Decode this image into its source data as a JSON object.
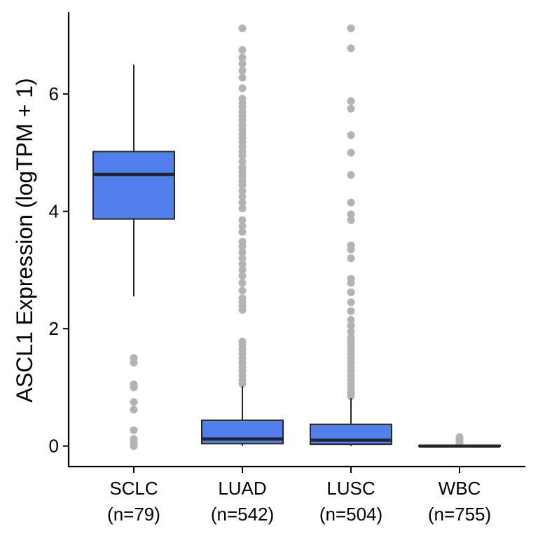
{
  "chart_data": {
    "type": "box",
    "title": "",
    "ylabel": "ASCL1 Expression (logTPM + 1)",
    "xlabel": "",
    "ylim": [
      -0.35,
      7.4
    ],
    "yticks": [
      0,
      2,
      4,
      6
    ],
    "ytick_labels": [
      "0",
      "2",
      "4",
      "6"
    ],
    "grid": false,
    "legend": "none",
    "colors": {
      "box_fill": "#5080EC",
      "box_stroke": "#262626",
      "outlier": "#B3B3B3",
      "axis": "#000000"
    },
    "groups": [
      {
        "label": "SCLC",
        "n_label": "(n=79)",
        "whisker_low": 2.55,
        "q1": 3.87,
        "median": 4.63,
        "q3": 5.02,
        "whisker_high": 6.5,
        "outliers": [
          1.5,
          1.42,
          1.05,
          1.0,
          0.75,
          0.62,
          0.27,
          0.12,
          0.07,
          0.03,
          0.0
        ]
      },
      {
        "label": "LUAD",
        "n_label": "(n=542)",
        "whisker_low": 0.0,
        "q1": 0.04,
        "median": 0.12,
        "q3": 0.44,
        "whisker_high": 1.02,
        "outliers": [
          7.12,
          6.75,
          6.62,
          6.52,
          6.4,
          6.28,
          6.1,
          5.92,
          5.85,
          5.78,
          5.7,
          5.62,
          5.55,
          5.47,
          5.4,
          5.32,
          5.25,
          5.18,
          5.1,
          5.02,
          4.95,
          4.85,
          4.75,
          4.68,
          4.6,
          4.52,
          4.45,
          4.35,
          4.25,
          4.15,
          4.05,
          3.85,
          3.75,
          3.65,
          3.48,
          3.4,
          3.3,
          3.2,
          3.1,
          3.0,
          2.9,
          2.78,
          2.65,
          2.52,
          2.45,
          2.38,
          2.32,
          1.78,
          1.72,
          1.65,
          1.58,
          1.5,
          1.42,
          1.35,
          1.28,
          1.2,
          1.12,
          1.06
        ]
      },
      {
        "label": "LUSC",
        "n_label": "(n=504)",
        "whisker_low": 0.0,
        "q1": 0.03,
        "median": 0.1,
        "q3": 0.37,
        "whisker_high": 0.82,
        "outliers": [
          7.12,
          6.78,
          5.88,
          5.75,
          5.3,
          5.0,
          4.62,
          4.15,
          3.95,
          3.85,
          3.42,
          3.35,
          3.2,
          2.85,
          2.78,
          2.62,
          2.45,
          2.3,
          2.15,
          2.05,
          1.95,
          1.85,
          1.78,
          1.72,
          1.65,
          1.58,
          1.5,
          1.42,
          1.35,
          1.28,
          1.2,
          1.12,
          1.05,
          0.98,
          0.9,
          0.85
        ]
      },
      {
        "label": "WBC",
        "n_label": "(n=755)",
        "whisker_low": 0.0,
        "q1": 0.0,
        "median": 0.0,
        "q3": 0.01,
        "whisker_high": 0.02,
        "outliers": [
          0.15,
          0.12,
          0.1,
          0.08,
          0.06,
          0.04
        ]
      }
    ]
  }
}
